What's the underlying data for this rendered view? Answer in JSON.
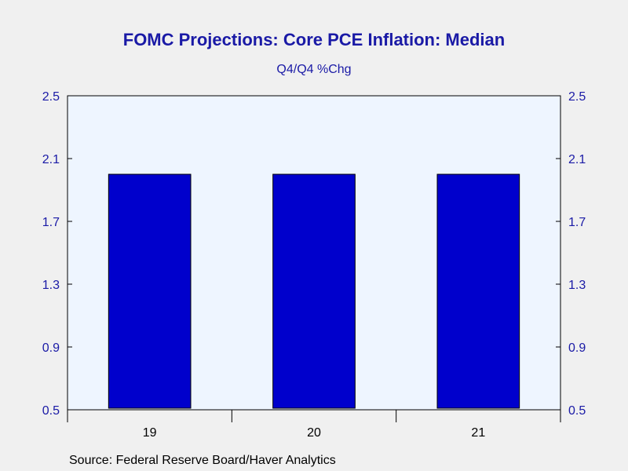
{
  "chart_data": {
    "type": "bar",
    "title": "FOMC Projections: Core PCE Inflation: Median",
    "subtitle": "Q4/Q4 %Chg",
    "categories": [
      "19",
      "20",
      "21"
    ],
    "values": [
      2.0,
      2.0,
      2.0
    ],
    "ylim": [
      0.5,
      2.5
    ],
    "yticks": [
      "0.5",
      "0.9",
      "1.3",
      "1.7",
      "2.1",
      "2.5"
    ],
    "y_axis_both_sides": true,
    "grid": false,
    "colors": {
      "bar_fill": "#0000cc",
      "bar_stroke": "#000000",
      "plot_background": "#eef5ff",
      "text_accent": "#1a1aa6"
    }
  },
  "source": "Source:  Federal Reserve Board/Haver Analytics"
}
